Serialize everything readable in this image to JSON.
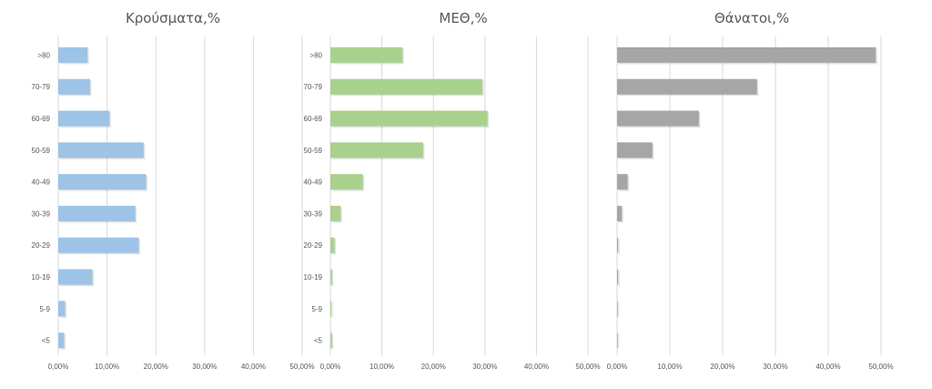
{
  "chart_data": [
    {
      "type": "bar",
      "orientation": "horizontal",
      "title": "Κρούσματα,%",
      "categories": [
        ">80",
        "70-79",
        "60-69",
        "50-59",
        "40-49",
        "30-39",
        "20-29",
        "10-19",
        "5-9",
        "<5"
      ],
      "values": [
        6.0,
        6.5,
        10.5,
        17.5,
        18.0,
        15.8,
        16.5,
        7.0,
        1.4,
        1.2
      ],
      "xlim": [
        0,
        50
      ],
      "ticks": [
        "0,00%",
        "10,00%",
        "20,00%",
        "30,00%",
        "40,00%",
        "50,00%"
      ],
      "color": "#9dc3e6",
      "grid": true
    },
    {
      "type": "bar",
      "orientation": "horizontal",
      "title": "ΜΕΘ,%",
      "categories": [
        ">80",
        "70-79",
        "60-69",
        "50-59",
        "40-49",
        "30-39",
        "20-29",
        "10-19",
        "5-9",
        "<5"
      ],
      "values": [
        14.0,
        29.5,
        30.5,
        18.0,
        6.3,
        2.0,
        0.8,
        0.3,
        0.2,
        0.3
      ],
      "xlim": [
        0,
        50
      ],
      "ticks": [
        "0,00%",
        "10,00%",
        "20,00%",
        "30,00%",
        "40,00%",
        "50,00%"
      ],
      "color": "#a9d18e",
      "grid": true
    },
    {
      "type": "bar",
      "orientation": "horizontal",
      "title": "Θάνατοι,%",
      "categories": [
        ">80",
        "70-79",
        "60-69",
        "50-59",
        "40-49",
        "30-39",
        "20-29",
        "10-19",
        "5-9",
        "<5"
      ],
      "values": [
        49.0,
        26.5,
        15.5,
        6.7,
        2.0,
        0.9,
        0.2,
        0.2,
        0.0,
        0.0
      ],
      "xlim": [
        0,
        50
      ],
      "ticks": [
        "0,00%",
        "10,00%",
        "20,00%",
        "30,00%",
        "40,00%",
        "50,00%"
      ],
      "color": "#a6a6a6",
      "grid": true,
      "show_categories": false
    }
  ]
}
